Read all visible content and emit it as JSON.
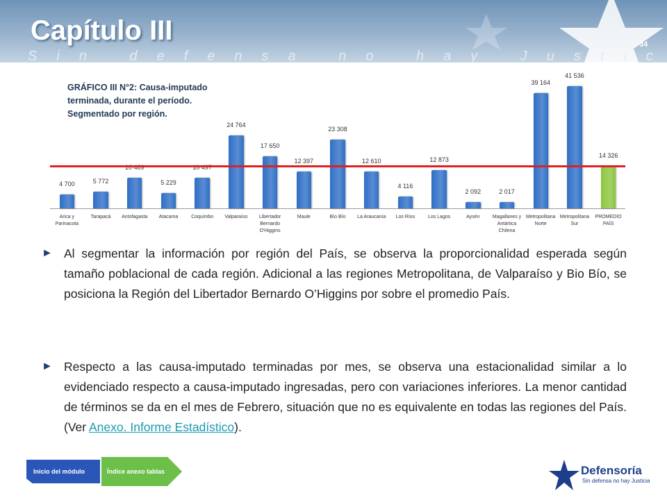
{
  "header": {
    "title": "Capítulo III",
    "subtitle": "Sin defensa no hay Justicia",
    "page_number": "34"
  },
  "chart_data": {
    "type": "bar",
    "title": "GRÁFICO III N°2: Causa-imputado terminada, durante el período. Segmentado por región.",
    "categories": [
      "Arica y Parinacota",
      "Tarapacá",
      "Antofagasta",
      "Atacama",
      "Coquimbo",
      "Valparaíso",
      "Libertador Bernardo O'Higgins",
      "Maule",
      "Bío Bío",
      "La Araucanía",
      "Los Ríos",
      "Los Lagos",
      "Aysén",
      "Magallanes y Antártica Chilena",
      "Metropolitana Norte",
      "Metropolitana Sur",
      "PROMEDIO PAÍS"
    ],
    "values": [
      4700,
      5772,
      10489,
      5229,
      10497,
      24764,
      17650,
      12397,
      23308,
      12610,
      4116,
      12873,
      2092,
      2017,
      39164,
      41536,
      14326
    ],
    "value_labels": [
      "4 700",
      "5 772",
      "10 489",
      "5 229",
      "10 497",
      "24 764",
      "17 650",
      "12 397",
      "23 308",
      "12 610",
      "4 116",
      "12 873",
      "2 092",
      "2 017",
      "39 164",
      "41 536",
      "14 326"
    ],
    "colors": [
      "#2f6fc6",
      "#2f6fc6",
      "#2f6fc6",
      "#2f6fc6",
      "#2f6fc6",
      "#2f6fc6",
      "#2f6fc6",
      "#2f6fc6",
      "#2f6fc6",
      "#2f6fc6",
      "#2f6fc6",
      "#2f6fc6",
      "#2f6fc6",
      "#2f6fc6",
      "#2f6fc6",
      "#2f6fc6",
      "#8cc63e"
    ],
    "reference_line_color": "#e02020",
    "ylim": [
      0,
      42000
    ]
  },
  "body": {
    "paragraphs": [
      [
        "Al segmentar la información por región del País, se observa la proporcionalidad esperada según tamaño poblacional de cada región. Adicional a las regiones Metropolitana, de Valparaíso y Bio Bío, se posiciona la Región del Libertador Bernardo O’Higgins por sobre el promedio País."
      ],
      [
        "Respecto a las causa-imputado terminadas por mes, se observa una estacionalidad similar a lo evidenciado respecto a causa-imputado ingresadas, pero con variaciones inferiores. La menor cantidad de términos se da en el mes de Febrero, situación que no es equivalente en todas las regiones del País. (Ver ",
        "Anexo. Informe Estadístico",
        ")."
      ]
    ]
  },
  "footer": {
    "buttons": [
      "Inicio del módulo",
      "Índice anexo tablas"
    ],
    "logo": "Defensoría",
    "logo_tagline": "Sin defensa no hay Justicia"
  }
}
